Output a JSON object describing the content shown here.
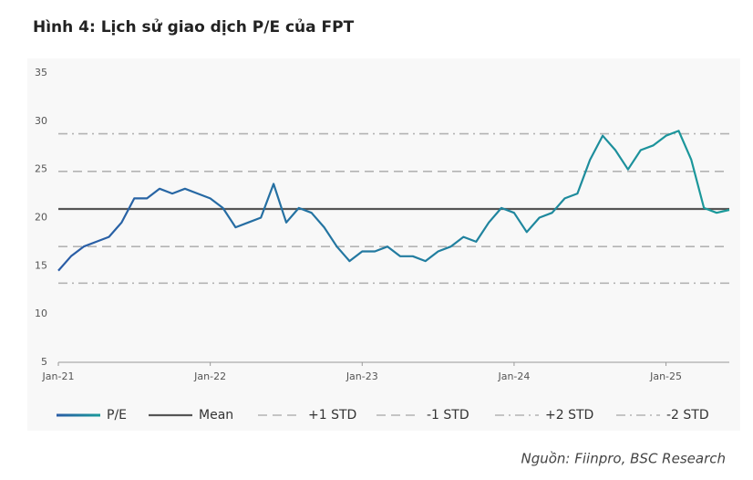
{
  "chart_data": {
    "type": "line",
    "title": "Hình 4: Lịch sử giao dịch P/E của FPT",
    "source": "Nguồn: Fiinpro, BSC Research",
    "x": [
      "2021-01",
      "2021-02",
      "2021-03",
      "2021-04",
      "2021-05",
      "2021-06",
      "2021-07",
      "2021-08",
      "2021-09",
      "2021-10",
      "2021-11",
      "2021-12",
      "2022-01",
      "2022-02",
      "2022-03",
      "2022-04",
      "2022-05",
      "2022-06",
      "2022-07",
      "2022-08",
      "2022-09",
      "2022-10",
      "2022-11",
      "2022-12",
      "2023-01",
      "2023-02",
      "2023-03",
      "2023-04",
      "2023-05",
      "2023-06",
      "2023-07",
      "2023-08",
      "2023-09",
      "2023-10",
      "2023-11",
      "2023-12",
      "2024-01",
      "2024-02",
      "2024-03",
      "2024-04",
      "2024-05",
      "2024-06",
      "2024-07",
      "2024-08",
      "2024-09",
      "2024-10",
      "2024-11",
      "2024-12",
      "2025-01",
      "2025-02",
      "2025-03",
      "2025-04",
      "2025-05",
      "2025-06"
    ],
    "series": [
      {
        "name": "P/E",
        "colors": [
          "#2a5ca6",
          "#1a9a9a"
        ],
        "values": [
          14.5,
          16,
          17,
          17.5,
          18,
          19.5,
          22,
          22,
          23,
          22.5,
          23,
          22.5,
          22,
          21,
          19,
          19.5,
          20,
          23.5,
          19.5,
          21,
          20.5,
          19,
          17,
          15.5,
          16.5,
          16.5,
          17,
          16,
          16,
          15.5,
          16.5,
          17,
          18,
          17.5,
          19.5,
          21,
          20.5,
          18.5,
          20,
          20.5,
          22,
          22.5,
          26,
          28.5,
          27,
          25,
          27,
          27.5,
          28.5,
          29,
          26,
          21,
          20.5,
          20.8
        ]
      }
    ],
    "reference_lines": [
      {
        "name": "Mean",
        "value": 20.9,
        "color": "#555555",
        "style": "solid"
      },
      {
        "name": "+1 STD",
        "value": 24.8,
        "color": "#b3b3b3",
        "style": "dashed"
      },
      {
        "name": "-1 STD",
        "value": 17.0,
        "color": "#b3b3b3",
        "style": "dashed"
      },
      {
        "name": "+2 STD",
        "value": 28.7,
        "color": "#b3b3b3",
        "style": "dashdot"
      },
      {
        "name": "-2 STD",
        "value": 13.2,
        "color": "#b3b3b3",
        "style": "dashdot"
      }
    ],
    "xlim": [
      "2021-01",
      "2025-06"
    ],
    "xticks": [
      {
        "value": "2021-01",
        "label": "Jan-21"
      },
      {
        "value": "2022-01",
        "label": "Jan-22"
      },
      {
        "value": "2023-01",
        "label": "Jan-23"
      },
      {
        "value": "2024-01",
        "label": "Jan-24"
      },
      {
        "value": "2025-01",
        "label": "Jan-25"
      }
    ],
    "ylim": [
      5,
      35
    ],
    "yticks": [
      5,
      10,
      15,
      20,
      25,
      30,
      35
    ]
  }
}
